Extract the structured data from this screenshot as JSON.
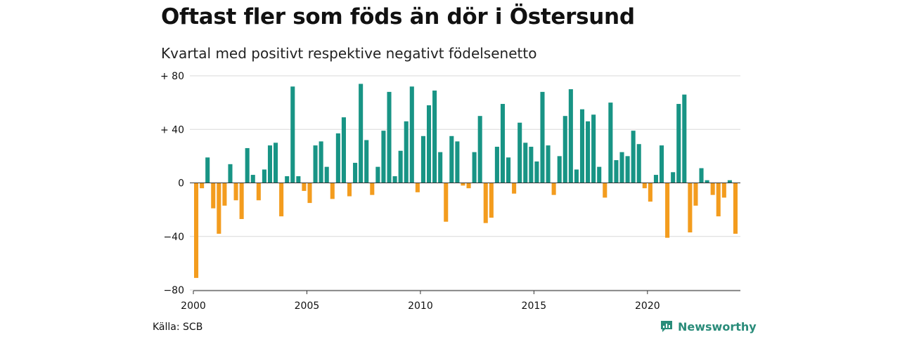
{
  "title": "Oftast fler som föds än dör i Östersund",
  "subtitle": "Kvartal med positivt respektive negativt födelsenetto",
  "source": "Källa: SCB",
  "brand": {
    "name": "Newsworthy",
    "icon": "newsworthy-logo-icon"
  },
  "colors": {
    "positive": "#189485",
    "negative": "#f39c1e",
    "grid": "#d9d9d9",
    "axis": "#333333"
  },
  "chart_data": {
    "type": "bar",
    "title": "Oftast fler som föds än dör i Östersund",
    "subtitle": "Kvartal med positivt respektive negativt födelsenetto",
    "xlabel": "",
    "ylabel": "",
    "ylim": [
      -80,
      80
    ],
    "grid": true,
    "y_ticks": [
      {
        "value": 80,
        "label": "+ 80"
      },
      {
        "value": 40,
        "label": "+ 40"
      },
      {
        "value": 0,
        "label": "0"
      },
      {
        "value": -40,
        "label": "−40"
      },
      {
        "value": -80,
        "label": "−80"
      }
    ],
    "x_start": 2000,
    "x_ticks": [
      {
        "value": 2000,
        "label": "2000"
      },
      {
        "value": 2005,
        "label": "2005"
      },
      {
        "value": 2010,
        "label": "2010"
      },
      {
        "value": 2015,
        "label": "2015"
      },
      {
        "value": 2020,
        "label": "2020"
      }
    ],
    "values": [
      -71,
      -4,
      19,
      -19,
      -38,
      -17,
      14,
      -13,
      -27,
      26,
      6,
      -13,
      10,
      28,
      30,
      -25,
      5,
      72,
      5,
      -6,
      -15,
      28,
      31,
      12,
      -12,
      37,
      49,
      -10,
      15,
      74,
      32,
      -9,
      12,
      39,
      68,
      5,
      24,
      46,
      72,
      -7,
      35,
      58,
      69,
      23,
      -29,
      35,
      31,
      -2,
      -4,
      23,
      50,
      -30,
      -26,
      27,
      59,
      19,
      -8,
      45,
      30,
      27,
      16,
      68,
      28,
      -9,
      20,
      50,
      70,
      10,
      55,
      46,
      51,
      12,
      -11,
      60,
      17,
      23,
      20,
      39,
      29,
      -4,
      -14,
      6,
      28,
      -41,
      8,
      59,
      66,
      -37,
      -17,
      11,
      2,
      -9,
      -25,
      -11,
      2,
      -38
    ]
  }
}
